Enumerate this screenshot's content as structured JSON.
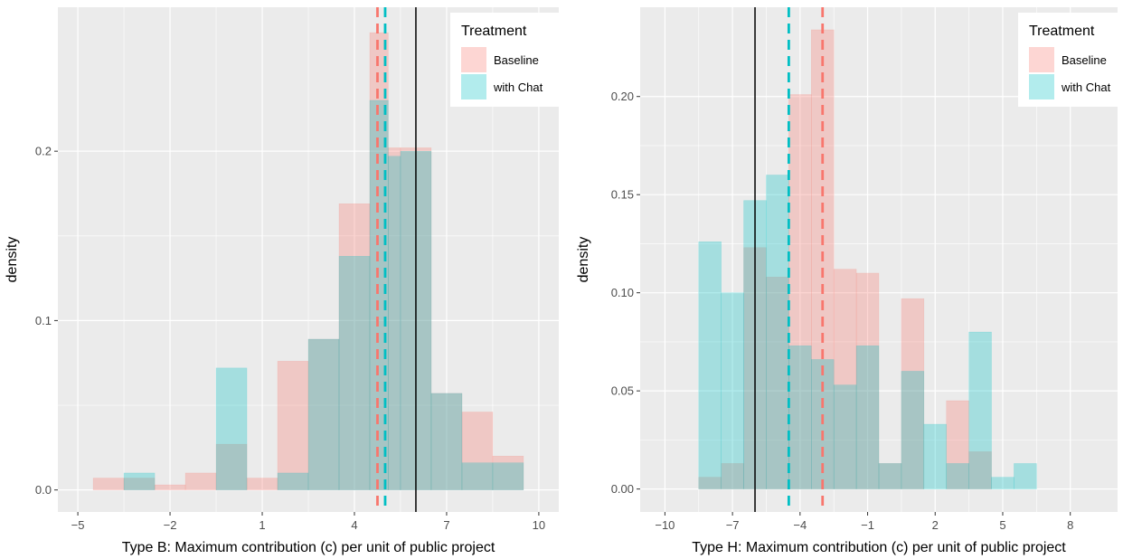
{
  "colors": {
    "baseline": "#F8766D",
    "chat": "#00BFC4",
    "panel_bg": "#EBEBEB",
    "grid": "#FFFFFF",
    "text": "#4D4D4D"
  },
  "chart_data": [
    {
      "type": "histogram",
      "ylabel": "density",
      "xlabel": "Type B: Maximum contribution (c) per unit of public project",
      "xlim": [
        -5.65,
        10.65
      ],
      "ylim": [
        -0.013,
        0.285
      ],
      "xticks": [
        -5,
        -2,
        1,
        4,
        7,
        10
      ],
      "xtick_labels": [
        "−5",
        "−2",
        "1",
        "4",
        "7",
        "10"
      ],
      "yticks": [
        0.0,
        0.1,
        0.2
      ],
      "ytick_labels": [
        "0.0",
        "0.1",
        "0.2"
      ],
      "legend": {
        "title": "Treatment",
        "position": "top-right",
        "entries": [
          "Baseline",
          "with Chat"
        ]
      },
      "bins": [
        -4.5,
        -3.5,
        -2.5,
        -1.5,
        -0.5,
        0.5,
        1.5,
        2.5,
        3.5,
        4.5,
        5.1,
        5.5,
        6.5,
        7.5,
        8.5,
        9.5
      ],
      "series": [
        {
          "name": "Baseline",
          "values": [
            0.007,
            0.007,
            0.003,
            0.01,
            0.027,
            0.007,
            0.076,
            0.089,
            0.169,
            0.27,
            0.202,
            0.202,
            0.057,
            0.046,
            0.02
          ],
          "mean": 4.75
        },
        {
          "name": "with Chat",
          "values": [
            0.0,
            0.01,
            0.0,
            0.0,
            0.072,
            0.0,
            0.01,
            0.089,
            0.138,
            0.23,
            0.197,
            0.2,
            0.057,
            0.016,
            0.016
          ],
          "mean": 5.0
        }
      ],
      "reference_line": 6.0
    },
    {
      "type": "histogram",
      "ylabel": "density",
      "xlabel": "Type H: Maximum contribution (c) per unit of public project",
      "xlim": [
        -11.1,
        10.1
      ],
      "ylim": [
        -0.0117,
        0.2455
      ],
      "xticks": [
        -10,
        -7,
        -4,
        -1,
        2,
        5,
        8
      ],
      "xtick_labels": [
        "−10",
        "−7",
        "−4",
        "−1",
        "2",
        "5",
        "8"
      ],
      "yticks": [
        0.0,
        0.05,
        0.1,
        0.15,
        0.2
      ],
      "ytick_labels": [
        "0.00",
        "0.05",
        "0.10",
        "0.15",
        "0.20"
      ],
      "legend": {
        "title": "Treatment",
        "position": "top-right",
        "entries": [
          "Baseline",
          "with Chat"
        ]
      },
      "bins": [
        -9.5,
        -8.5,
        -7.5,
        -6.5,
        -5.5,
        -4.5,
        -3.5,
        -2.5,
        -1.5,
        -0.5,
        0.5,
        1.5,
        2.5,
        3.5,
        4.5,
        5.5,
        6.5,
        7.5,
        8.5,
        9.5
      ],
      "series": [
        {
          "name": "Baseline",
          "values": [
            0.0,
            0.006,
            0.013,
            0.123,
            0.108,
            0.201,
            0.234,
            0.112,
            0.11,
            0.013,
            0.097,
            0.0,
            0.045,
            0.019,
            0.0,
            0.0,
            0.0,
            0.0,
            0.0
          ],
          "mean": -3.0
        },
        {
          "name": "with Chat",
          "values": [
            0.0,
            0.126,
            0.1,
            0.147,
            0.16,
            0.073,
            0.066,
            0.053,
            0.073,
            0.013,
            0.06,
            0.033,
            0.013,
            0.08,
            0.006,
            0.013,
            0.0,
            0.0,
            0.0
          ],
          "mean": -4.5
        },
        "__"
      ],
      "reference_line": -6.0
    }
  ]
}
